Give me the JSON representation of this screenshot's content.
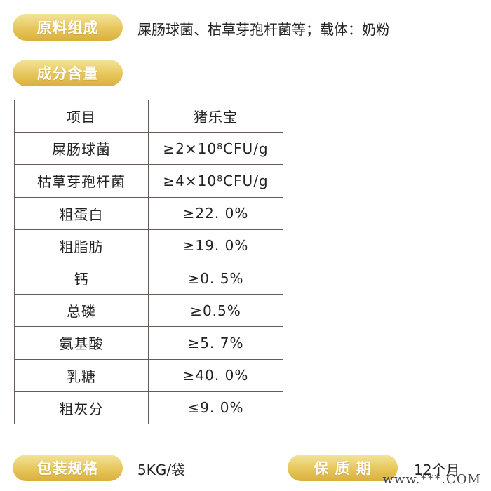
{
  "header": {
    "ingredients_label": "原料组成",
    "ingredients_text": "屎肠球菌、枯草芽孢杆菌等；载体：奶粉",
    "composition_label": "成分含量"
  },
  "table": {
    "header": [
      "项目",
      "猪乐宝"
    ],
    "rows": [
      [
        "屎肠球菌",
        "≥2×10⁸CFU/g"
      ],
      [
        "枯草芽孢杆菌",
        "≥4×10⁸CFU/g"
      ],
      [
        "粗蛋白",
        "≥22. 0%"
      ],
      [
        "粗脂肪",
        "≥19. 0%"
      ],
      [
        "钙",
        "≥0. 5%"
      ],
      [
        "总磷",
        "≥0.5%"
      ],
      [
        "氨基酸",
        "≥5. 7%"
      ],
      [
        "乳糖",
        "≥40. 0%"
      ],
      [
        "粗灰分",
        "≤9. 0%"
      ]
    ]
  },
  "footer": {
    "packaging_label": "包装规格",
    "packaging_value": "5KG/袋",
    "shelf_life_label": "保 质 期",
    "shelf_life_value": "12个月"
  },
  "watermark": "www.***.COM",
  "colors": {
    "pill_gold_light": "#f3e49a",
    "pill_gold_dark": "#d9b03f",
    "table_border": "#6b5a55"
  }
}
